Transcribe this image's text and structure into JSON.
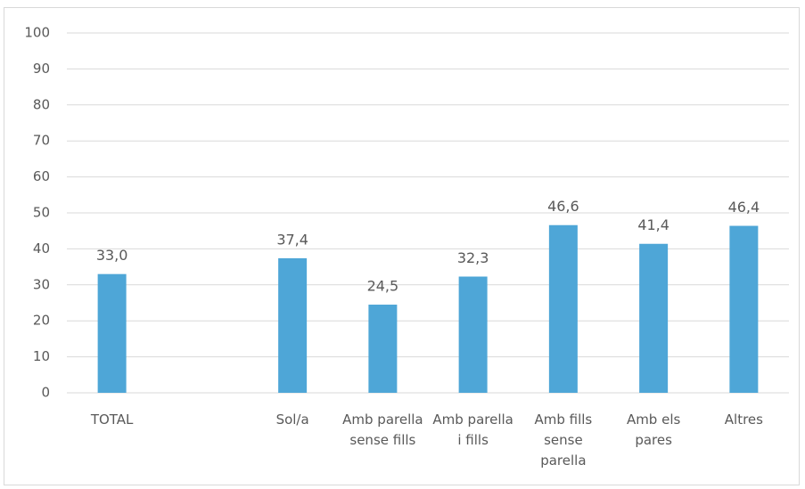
{
  "chart_data": {
    "type": "bar",
    "categories": [
      "TOTAL",
      null,
      "Sol/a",
      "Amb parella sense fills",
      "Amb parella i fills",
      "Amb fills sense parella",
      "Amb els pares",
      "Altres"
    ],
    "values": [
      33.0,
      null,
      37.4,
      24.5,
      32.3,
      46.6,
      41.4,
      46.4
    ],
    "value_labels": [
      "33,0",
      null,
      "37,4",
      "24,5",
      "32,3",
      "46,6",
      "41,4",
      "46,4"
    ],
    "color": "#4ea6d7",
    "ylim": [
      0,
      100
    ],
    "yticks": [
      0,
      10,
      20,
      30,
      40,
      50,
      60,
      70,
      80,
      90,
      100
    ],
    "grid": true
  }
}
